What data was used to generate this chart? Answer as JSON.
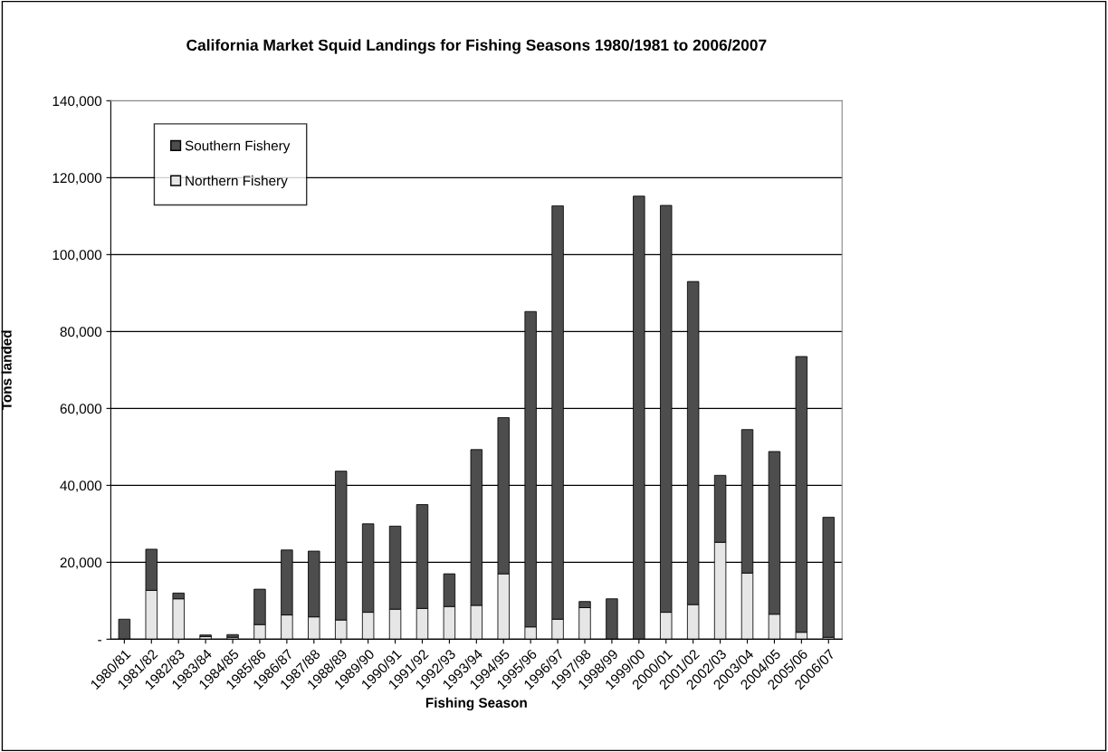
{
  "chart_data": {
    "type": "bar",
    "title": "California Market Squid Landings for Fishing Seasons 1980/1981 to 2006/2007",
    "xlabel": "Fishing Season",
    "ylabel": "Tons landed",
    "categories": [
      "1980/81",
      "1981/82",
      "1982/83",
      "1983/84",
      "1984/85",
      "1985/86",
      "1986/87",
      "1987/88",
      "1988/89",
      "1989/90",
      "1990/91",
      "1991/92",
      "1992/93",
      "1993/94",
      "1994/95",
      "1995/96",
      "1996/97",
      "1997/98",
      "1998/99",
      "1999/00",
      "2000/01",
      "2001/02",
      "2002/03",
      "2003/04",
      "2004/05",
      "2005/06",
      "2006/07"
    ],
    "stacked": true,
    "series": [
      {
        "name": "Northern Fishery",
        "color": "#e6e6e6",
        "values": [
          0,
          12700,
          10500,
          700,
          500,
          3800,
          6300,
          5800,
          5000,
          7000,
          7800,
          8000,
          8500,
          8800,
          17000,
          3200,
          5200,
          8200,
          0,
          null,
          7000,
          9000,
          25200,
          17200,
          6500,
          1800,
          500
        ]
      },
      {
        "name": "Southern Fishery",
        "color": "#4d4d4d",
        "values": [
          5200,
          10700,
          1500,
          400,
          700,
          9200,
          16900,
          17100,
          38700,
          23000,
          21600,
          27000,
          8500,
          40500,
          40600,
          82000,
          107500,
          1600,
          10500,
          115200,
          105800,
          84000,
          17400,
          37300,
          42300,
          71700,
          31200
        ]
      }
    ],
    "ylim": [
      0,
      140000
    ],
    "yticks": [
      {
        "value": 0,
        "label": "-"
      },
      {
        "value": 20000,
        "label": "20,000"
      },
      {
        "value": 40000,
        "label": "40,000"
      },
      {
        "value": 60000,
        "label": "60,000"
      },
      {
        "value": 80000,
        "label": "80,000"
      },
      {
        "value": 100000,
        "label": "100,000"
      },
      {
        "value": 120000,
        "label": "120,000"
      },
      {
        "value": 140000,
        "label": "140,000"
      }
    ],
    "grid": "y",
    "legend": "top left"
  }
}
